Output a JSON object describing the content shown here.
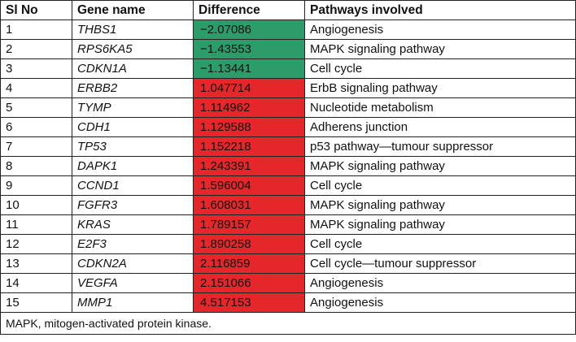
{
  "table": {
    "headers": [
      "Sl No",
      "Gene name",
      "Difference",
      "Pathways involved"
    ],
    "colors": {
      "decrease": "#2e9b6a",
      "increase": "#e3272a"
    },
    "rows": [
      {
        "sl": "1",
        "gene": "THBS1",
        "difference": "−2.07086",
        "direction": "decrease",
        "pathway": "Angiogenesis"
      },
      {
        "sl": "2",
        "gene": "RPS6KA5",
        "difference": "−1.43553",
        "direction": "decrease",
        "pathway": "MAPK signaling pathway"
      },
      {
        "sl": "3",
        "gene": "CDKN1A",
        "difference": "−1.13441",
        "direction": "decrease",
        "pathway": "Cell cycle"
      },
      {
        "sl": "4",
        "gene": "ERBB2",
        "difference": "1.047714",
        "direction": "increase",
        "pathway": "ErbB signaling pathway"
      },
      {
        "sl": "5",
        "gene": "TYMP",
        "difference": "1.114962",
        "direction": "increase",
        "pathway": "Nucleotide metabolism"
      },
      {
        "sl": "6",
        "gene": "CDH1",
        "difference": "1.129588",
        "direction": "increase",
        "pathway": "Adherens junction"
      },
      {
        "sl": "7",
        "gene": "TP53",
        "difference": "1.152218",
        "direction": "increase",
        "pathway": "p53 pathway—tumour suppressor"
      },
      {
        "sl": "8",
        "gene": "DAPK1",
        "difference": "1.243391",
        "direction": "increase",
        "pathway": "MAPK signaling pathway"
      },
      {
        "sl": "9",
        "gene": "CCND1",
        "difference": "1.596004",
        "direction": "increase",
        "pathway": "Cell cycle"
      },
      {
        "sl": "10",
        "gene": "FGFR3",
        "difference": "1.608031",
        "direction": "increase",
        "pathway": "MAPK signaling pathway"
      },
      {
        "sl": "11",
        "gene": "KRAS",
        "difference": "1.789157",
        "direction": "increase",
        "pathway": "MAPK signaling pathway"
      },
      {
        "sl": "12",
        "gene": "E2F3",
        "difference": "1.890258",
        "direction": "increase",
        "pathway": "Cell cycle"
      },
      {
        "sl": "13",
        "gene": "CDKN2A",
        "difference": "2.116859",
        "direction": "increase",
        "pathway": "Cell cycle—tumour suppressor"
      },
      {
        "sl": "14",
        "gene": "VEGFA",
        "difference": "2.151066",
        "direction": "increase",
        "pathway": "Angiogenesis"
      },
      {
        "sl": "15",
        "gene": "MMP1",
        "difference": "4.517153",
        "direction": "increase",
        "pathway": "Angiogenesis"
      }
    ],
    "footnote": "MAPK, mitogen-activated protein kinase."
  }
}
